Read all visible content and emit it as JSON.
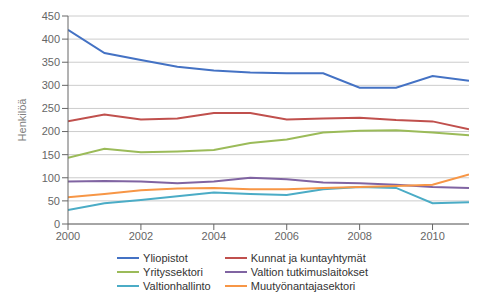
{
  "chart_data": {
    "type": "line",
    "ylabel": "Henkilöä",
    "x": [
      2000,
      2001,
      2002,
      2003,
      2004,
      2005,
      2006,
      2007,
      2008,
      2009,
      2010,
      2011
    ],
    "series": [
      {
        "name": "Yliopistot",
        "color": "#4472C4",
        "values": [
          420,
          370,
          355,
          340,
          332,
          328,
          326,
          326,
          295,
          295,
          320,
          310
        ]
      },
      {
        "name": "Kunnat ja kuntayhtymät",
        "color": "#C0504D",
        "values": [
          222,
          237,
          226,
          228,
          240,
          240,
          226,
          228,
          230,
          225,
          222,
          205
        ]
      },
      {
        "name": "Yrityssektori",
        "color": "#9BBB59",
        "values": [
          143,
          163,
          155,
          157,
          160,
          175,
          183,
          198,
          202,
          203,
          198,
          192
        ]
      },
      {
        "name": "Valtion tutkimuslaitokset",
        "color": "#8064A2",
        "values": [
          92,
          93,
          92,
          88,
          92,
          100,
          97,
          90,
          88,
          85,
          80,
          78
        ]
      },
      {
        "name": "Valtionhallinto",
        "color": "#4BACC6",
        "values": [
          30,
          45,
          52,
          60,
          68,
          65,
          63,
          75,
          80,
          78,
          45,
          47
        ]
      },
      {
        "name": "Muutyönantajasektori",
        "color": "#F79646",
        "values": [
          58,
          65,
          73,
          77,
          78,
          75,
          75,
          78,
          80,
          82,
          85,
          107
        ]
      }
    ],
    "ylim": [
      0,
      450
    ],
    "yticks": [
      0,
      50,
      100,
      150,
      200,
      250,
      300,
      350,
      400,
      450
    ],
    "xlim": [
      2000,
      2011
    ],
    "xticks": [
      2000,
      2002,
      2004,
      2006,
      2008,
      2010
    ],
    "grid": true,
    "legend": "bottom"
  }
}
